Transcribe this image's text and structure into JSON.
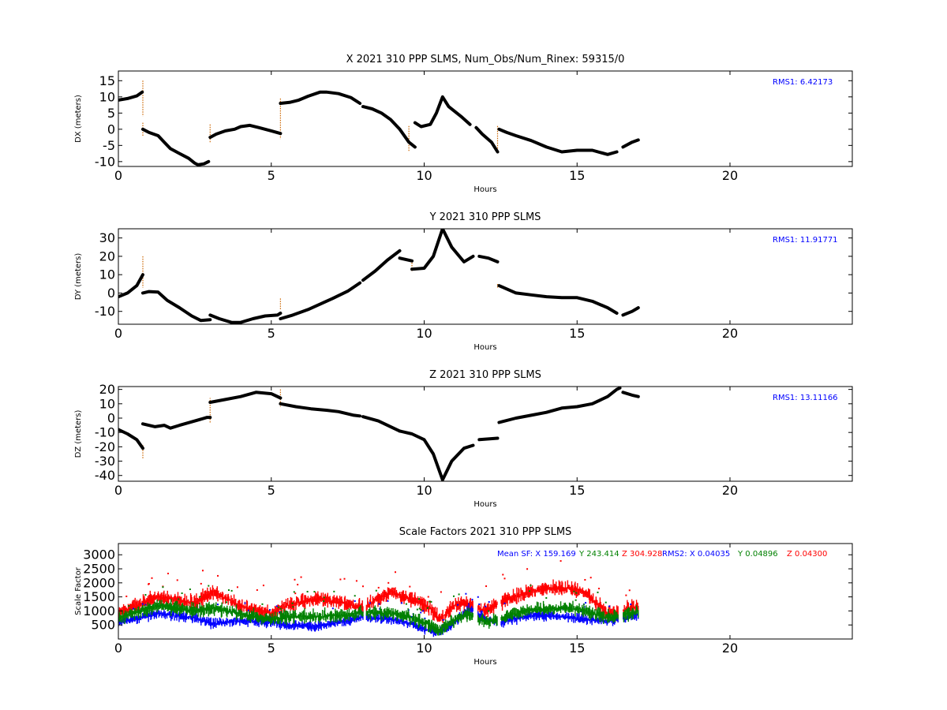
{
  "chart_data": [
    {
      "type": "scatter",
      "title": "X 2021 310 PPP  SLMS, Num_Obs/Num_Rinex: 59315/0",
      "xlabel": "Hours",
      "ylabel": "DX (meters)",
      "xlim": [
        0,
        24
      ],
      "ylim": [
        -11.5,
        18
      ],
      "xticks": [
        0,
        5,
        10,
        15,
        20
      ],
      "yticks": [
        -10,
        -5,
        0,
        5,
        10,
        15
      ],
      "annotation": "RMS1:  6.42173",
      "annotation_color": "#0000ff",
      "point_color": "#000000",
      "spike_color": "#cc6600",
      "segments": [
        [
          [
            0,
            9
          ],
          [
            0.3,
            9.5
          ],
          [
            0.6,
            10.3
          ],
          [
            0.78,
            11.5
          ]
        ],
        [
          [
            0.8,
            0
          ],
          [
            1.0,
            -1
          ],
          [
            1.3,
            -2
          ],
          [
            1.5,
            -4
          ],
          [
            1.7,
            -6
          ],
          [
            2.0,
            -7.5
          ],
          [
            2.3,
            -9
          ],
          [
            2.5,
            -10.5
          ],
          [
            2.6,
            -11
          ],
          [
            2.8,
            -10.7
          ],
          [
            2.95,
            -10
          ]
        ],
        [
          [
            3.0,
            -2.5
          ],
          [
            3.2,
            -1.5
          ],
          [
            3.5,
            -0.5
          ],
          [
            3.8,
            0
          ],
          [
            4.0,
            0.8
          ],
          [
            4.3,
            1.2
          ],
          [
            4.6,
            0.5
          ],
          [
            5.0,
            -0.5
          ],
          [
            5.3,
            -1.3
          ]
        ],
        [
          [
            5.3,
            8
          ],
          [
            5.6,
            8.3
          ],
          [
            5.9,
            9
          ],
          [
            6.2,
            10.2
          ],
          [
            6.6,
            11.5
          ],
          [
            6.8,
            11.5
          ],
          [
            7.2,
            11
          ],
          [
            7.6,
            9.8
          ],
          [
            7.9,
            8
          ]
        ],
        [
          [
            8.0,
            7
          ],
          [
            8.3,
            6.3
          ],
          [
            8.6,
            5
          ],
          [
            8.9,
            3
          ],
          [
            9.2,
            0
          ],
          [
            9.5,
            -4
          ],
          [
            9.7,
            -5.5
          ]
        ],
        [
          [
            9.7,
            2
          ],
          [
            9.9,
            0.8
          ],
          [
            10.2,
            1.5
          ],
          [
            10.4,
            5
          ],
          [
            10.6,
            10
          ],
          [
            10.8,
            7
          ],
          [
            11.2,
            4
          ],
          [
            11.5,
            1.5
          ]
        ],
        [
          [
            11.7,
            0.5
          ],
          [
            11.9,
            -1.5
          ],
          [
            12.2,
            -4
          ],
          [
            12.4,
            -7
          ]
        ],
        [
          [
            12.45,
            0
          ],
          [
            12.7,
            -1
          ],
          [
            13.0,
            -2
          ],
          [
            13.5,
            -3.5
          ],
          [
            14.0,
            -5.5
          ],
          [
            14.5,
            -7
          ],
          [
            15.0,
            -6.5
          ],
          [
            15.5,
            -6.5
          ],
          [
            16.0,
            -7.8
          ],
          [
            16.3,
            -7
          ]
        ],
        [
          [
            16.5,
            -5.5
          ],
          [
            16.8,
            -4
          ],
          [
            17.0,
            -3.3
          ]
        ]
      ],
      "spikes": [
        [
          0.8,
          15,
          4
        ],
        [
          0.8,
          -2,
          2
        ],
        [
          3.0,
          -4,
          1.5
        ],
        [
          5.3,
          9.5,
          -3
        ],
        [
          9.5,
          1,
          -7
        ],
        [
          12.4,
          1,
          -7
        ]
      ]
    },
    {
      "type": "scatter",
      "title": "Y 2021 310 PPP  SLMS",
      "xlabel": "Hours",
      "ylabel": "DY (meters)",
      "xlim": [
        0,
        24
      ],
      "ylim": [
        -17,
        35
      ],
      "xticks": [
        0,
        5,
        10,
        15,
        20
      ],
      "yticks": [
        -10,
        0,
        10,
        20,
        30
      ],
      "annotation": "RMS1: 11.91771",
      "annotation_color": "#0000ff",
      "point_color": "#000000",
      "spike_color": "#cc6600",
      "segments": [
        [
          [
            0,
            -2
          ],
          [
            0.3,
            0
          ],
          [
            0.6,
            4
          ],
          [
            0.8,
            10
          ]
        ],
        [
          [
            0.8,
            0
          ],
          [
            1.0,
            0.8
          ],
          [
            1.3,
            0.5
          ],
          [
            1.6,
            -4
          ],
          [
            2.0,
            -8
          ],
          [
            2.4,
            -12.5
          ],
          [
            2.7,
            -15
          ],
          [
            3.0,
            -14.5
          ]
        ],
        [
          [
            3.0,
            -12
          ],
          [
            3.3,
            -14
          ],
          [
            3.7,
            -16
          ],
          [
            4.0,
            -16
          ],
          [
            4.4,
            -14
          ],
          [
            4.8,
            -12.5
          ],
          [
            5.2,
            -12
          ],
          [
            5.3,
            -11
          ]
        ],
        [
          [
            5.3,
            -14
          ],
          [
            5.7,
            -12
          ],
          [
            6.2,
            -9
          ],
          [
            6.6,
            -6
          ],
          [
            7.0,
            -3
          ],
          [
            7.5,
            1
          ],
          [
            7.9,
            5.5
          ]
        ],
        [
          [
            8.0,
            7
          ],
          [
            8.4,
            12
          ],
          [
            8.8,
            18
          ],
          [
            9.2,
            23
          ]
        ],
        [
          [
            9.2,
            19
          ],
          [
            9.6,
            17.5
          ]
        ],
        [
          [
            9.6,
            13
          ],
          [
            10.0,
            13.5
          ],
          [
            10.3,
            20
          ],
          [
            10.6,
            35
          ],
          [
            10.9,
            25
          ],
          [
            11.3,
            17
          ],
          [
            11.6,
            20
          ]
        ],
        [
          [
            11.8,
            20
          ],
          [
            12.1,
            19
          ],
          [
            12.4,
            17
          ]
        ],
        [
          [
            12.45,
            4
          ],
          [
            13.0,
            0
          ],
          [
            13.5,
            -1
          ],
          [
            14.0,
            -2
          ],
          [
            14.5,
            -2.5
          ],
          [
            15.0,
            -2.5
          ],
          [
            15.5,
            -4.5
          ],
          [
            16.0,
            -8
          ],
          [
            16.3,
            -11
          ]
        ],
        [
          [
            16.5,
            -12
          ],
          [
            16.8,
            -10
          ],
          [
            17.0,
            -8
          ]
        ]
      ],
      "spikes": [
        [
          0.8,
          20,
          3
        ],
        [
          5.3,
          -3,
          -9
        ],
        [
          9.6,
          12,
          18
        ],
        [
          12.4,
          3,
          5
        ]
      ]
    },
    {
      "type": "scatter",
      "title": "Z 2021 310 PPP  SLMS",
      "xlabel": "Hours",
      "ylabel": "DZ (meters)",
      "xlim": [
        0,
        24
      ],
      "ylim": [
        -44,
        22
      ],
      "xticks": [
        0,
        5,
        10,
        15,
        20
      ],
      "yticks": [
        -40,
        -30,
        -20,
        -10,
        0,
        10,
        20
      ],
      "annotation": "RMS1: 13.11166",
      "annotation_color": "#0000ff",
      "point_color": "#000000",
      "spike_color": "#cc6600",
      "segments": [
        [
          [
            0,
            -8
          ],
          [
            0.3,
            -11
          ],
          [
            0.6,
            -15
          ],
          [
            0.8,
            -21
          ]
        ],
        [
          [
            0.8,
            -4
          ],
          [
            1.2,
            -6
          ],
          [
            1.5,
            -5
          ],
          [
            1.7,
            -7
          ],
          [
            2.0,
            -5
          ],
          [
            2.5,
            -2
          ],
          [
            2.9,
            0.5
          ],
          [
            3.0,
            0.5
          ]
        ],
        [
          [
            3.0,
            11
          ],
          [
            3.5,
            13
          ],
          [
            4.0,
            15
          ],
          [
            4.5,
            18
          ],
          [
            5.0,
            17
          ],
          [
            5.3,
            14
          ]
        ],
        [
          [
            5.3,
            10
          ],
          [
            5.8,
            8
          ],
          [
            6.3,
            6.5
          ],
          [
            6.8,
            5.5
          ],
          [
            7.2,
            4.5
          ],
          [
            7.7,
            2
          ],
          [
            7.9,
            1.5
          ]
        ],
        [
          [
            8.0,
            1
          ],
          [
            8.5,
            -2
          ],
          [
            8.9,
            -6
          ],
          [
            9.2,
            -9
          ]
        ],
        [
          [
            9.2,
            -9
          ],
          [
            9.6,
            -11
          ],
          [
            10.0,
            -15
          ],
          [
            10.3,
            -25
          ],
          [
            10.6,
            -43
          ],
          [
            10.9,
            -30
          ],
          [
            11.3,
            -21
          ],
          [
            11.6,
            -19
          ]
        ],
        [
          [
            11.8,
            -15
          ],
          [
            12.1,
            -14.5
          ],
          [
            12.4,
            -14
          ]
        ],
        [
          [
            12.45,
            -3
          ],
          [
            13.0,
            0
          ],
          [
            13.5,
            2
          ],
          [
            14.0,
            4
          ],
          [
            14.5,
            7
          ],
          [
            15.0,
            8
          ],
          [
            15.5,
            10
          ],
          [
            16.0,
            15
          ],
          [
            16.3,
            20
          ],
          [
            16.4,
            21
          ]
        ],
        [
          [
            16.5,
            18
          ],
          [
            16.8,
            16
          ],
          [
            17.0,
            15
          ]
        ]
      ],
      "spikes": [
        [
          0.8,
          -28,
          -18
        ],
        [
          3.0,
          -3,
          14
        ],
        [
          5.3,
          20,
          8
        ]
      ]
    },
    {
      "type": "scatter",
      "title": "Scale Factors 2021 310 PPP  SLMS",
      "xlabel": "Hours",
      "ylabel": "Scale Factor",
      "xlim": [
        0,
        24
      ],
      "ylim": [
        0,
        3400
      ],
      "xticks": [
        0,
        5,
        10,
        15,
        20
      ],
      "yticks": [
        500,
        1000,
        1500,
        2000,
        2500,
        3000
      ],
      "annotations": [
        {
          "text": "Mean SF: X 159.169",
          "color": "#0000ff"
        },
        {
          "text": "Y 243.414",
          "color": "#008000"
        },
        {
          "text": "Z 304.928",
          "color": "#ff0000"
        },
        {
          "text": "RMS2: X  0.04035",
          "color": "#0000ff"
        },
        {
          "text": "Y  0.04896",
          "color": "#008000"
        },
        {
          "text": "Z  0.04300",
          "color": "#ff0000"
        }
      ],
      "series": [
        {
          "color": "#ff0000",
          "points": [
            [
              0,
              900
            ],
            [
              1.3,
              1500
            ],
            [
              2.5,
              1300
            ],
            [
              3.1,
              1700
            ],
            [
              4.0,
              1150
            ],
            [
              5.0,
              900
            ],
            [
              5.5,
              1200
            ],
            [
              6.5,
              1450
            ],
            [
              7.5,
              1250
            ],
            [
              8.0,
              1100
            ],
            [
              8.9,
              1700
            ],
            [
              9.5,
              1450
            ],
            [
              10.2,
              1100
            ],
            [
              10.5,
              700
            ],
            [
              11.0,
              1200
            ],
            [
              11.5,
              1250
            ],
            [
              12.0,
              1000
            ],
            [
              12.5,
              1300
            ],
            [
              13.5,
              1700
            ],
            [
              14.5,
              1850
            ],
            [
              15.2,
              1700
            ],
            [
              16.0,
              900
            ],
            [
              16.5,
              1000
            ],
            [
              17.0,
              1150
            ]
          ],
          "spread": 220
        },
        {
          "color": "#0000ff",
          "points": [
            [
              0,
              600
            ],
            [
              1.3,
              900
            ],
            [
              2.5,
              750
            ],
            [
              3.1,
              550
            ],
            [
              4.0,
              650
            ],
            [
              5.0,
              600
            ],
            [
              5.5,
              500
            ],
            [
              6.5,
              450
            ],
            [
              7.5,
              650
            ],
            [
              8.0,
              800
            ],
            [
              8.9,
              700
            ],
            [
              9.5,
              550
            ],
            [
              10.2,
              300
            ],
            [
              10.5,
              250
            ],
            [
              11.0,
              600
            ],
            [
              11.5,
              1100
            ],
            [
              12.0,
              700
            ],
            [
              12.5,
              600
            ],
            [
              13.5,
              850
            ],
            [
              14.5,
              800
            ],
            [
              15.2,
              700
            ],
            [
              16.0,
              650
            ],
            [
              16.5,
              700
            ],
            [
              17.0,
              900
            ]
          ],
          "spread": 150
        },
        {
          "color": "#008000",
          "points": [
            [
              0,
              750
            ],
            [
              1.3,
              1200
            ],
            [
              2.5,
              1000
            ],
            [
              3.1,
              1100
            ],
            [
              4.0,
              900
            ],
            [
              5.0,
              700
            ],
            [
              5.5,
              800
            ],
            [
              6.5,
              800
            ],
            [
              7.5,
              850
            ],
            [
              8.0,
              950
            ],
            [
              8.9,
              900
            ],
            [
              9.5,
              800
            ],
            [
              10.2,
              500
            ],
            [
              10.5,
              300
            ],
            [
              11.0,
              700
            ],
            [
              11.5,
              900
            ],
            [
              12.0,
              600
            ],
            [
              12.5,
              750
            ],
            [
              13.5,
              1050
            ],
            [
              14.5,
              1100
            ],
            [
              15.2,
              1050
            ],
            [
              16.0,
              750
            ],
            [
              16.5,
              850
            ],
            [
              17.0,
              1000
            ]
          ],
          "spread": 200
        }
      ],
      "gaps": [
        [
          8.0,
          8.1
        ],
        [
          11.6,
          11.75
        ],
        [
          12.4,
          12.5
        ],
        [
          16.35,
          16.5
        ]
      ]
    }
  ]
}
